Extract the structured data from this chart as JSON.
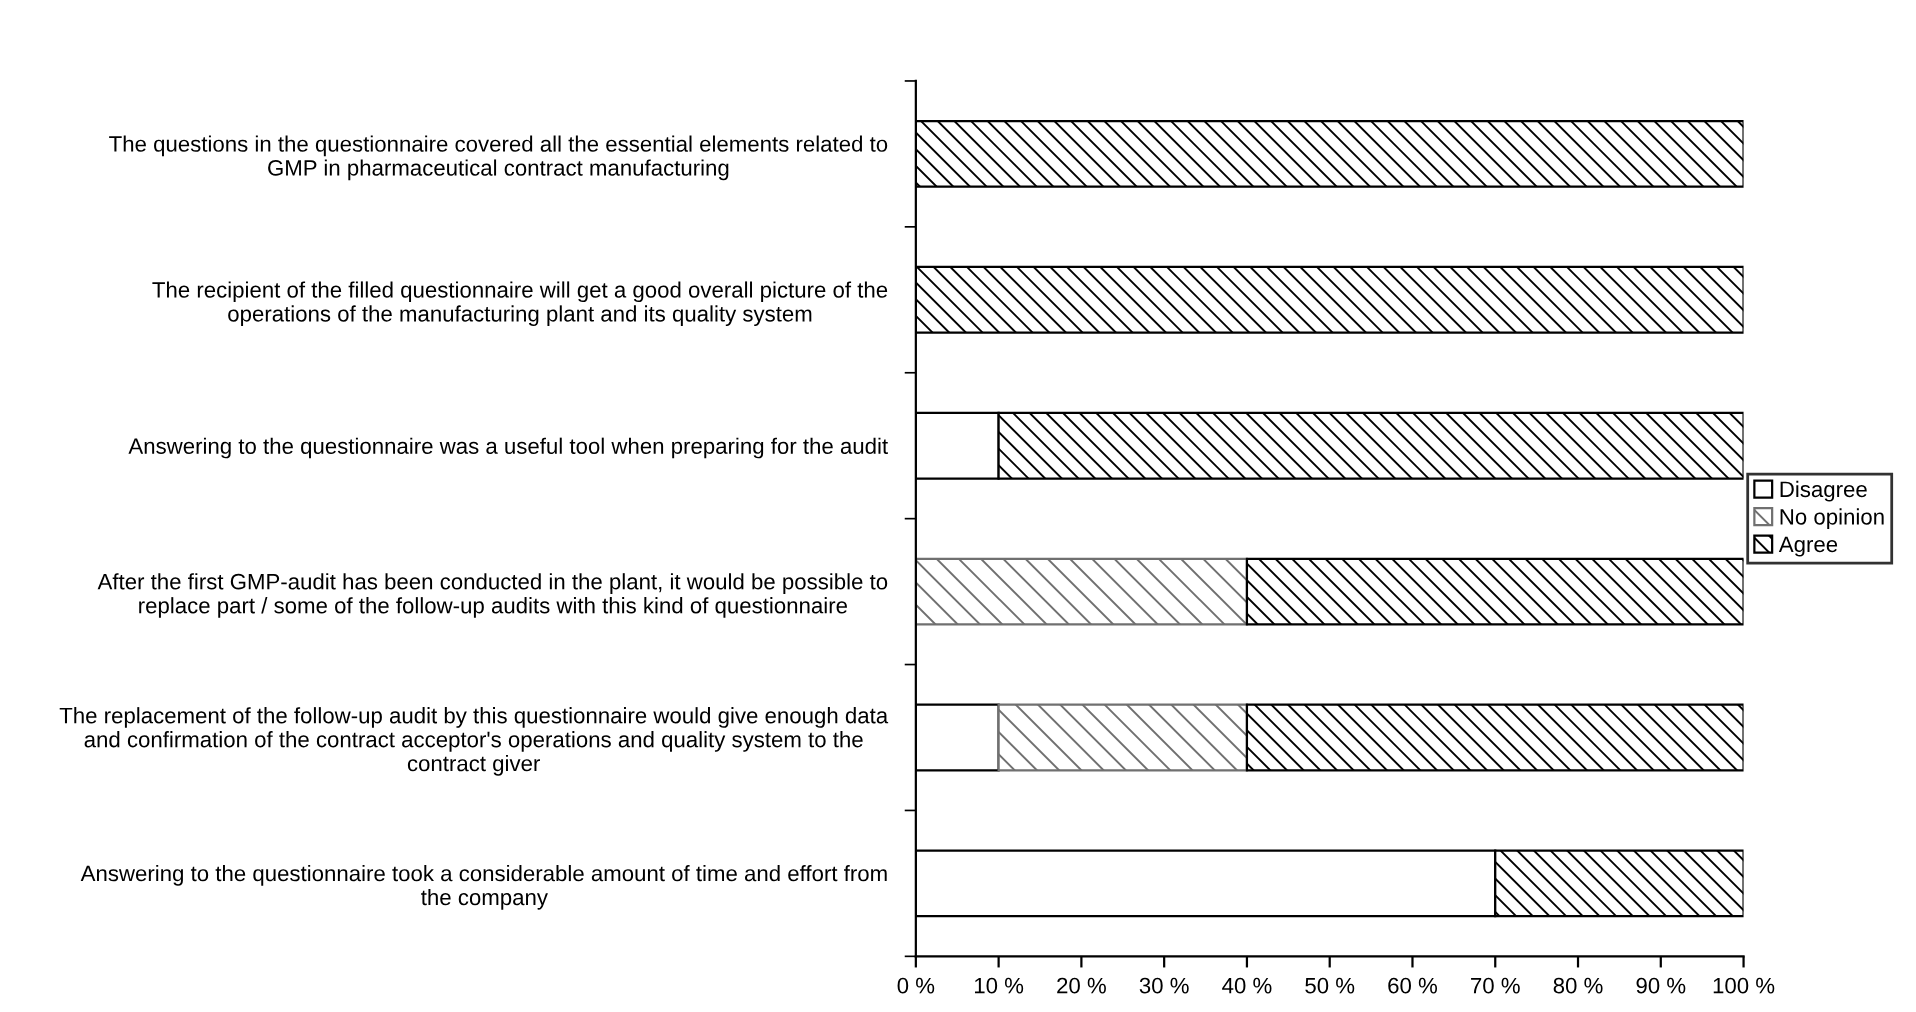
{
  "chart_data": {
    "type": "bar",
    "orientation": "horizontal",
    "stacked": true,
    "categories": [
      "The questions in the questionnaire covered all the essential elements related to\nGMP in pharmaceutical contract manufacturing",
      "The recipient of the filled questionnaire will get a good overall picture of the\noperations of the manufacturing plant and its quality system",
      "Answering to the questionnaire was a useful tool when preparing for the audit",
      "After the first GMP-audit has been conducted in the plant, it would be possible to\nreplace part / some of the follow-up audits with this kind of questionnaire",
      "The replacement of the follow-up audit by this questionnaire would give enough data\nand confirmation of the contract acceptor's operations and quality system to the\ncontract giver",
      "Answering to the questionnaire took a considerable amount of time and effort from\nthe company"
    ],
    "series": [
      {
        "name": "Disagree",
        "color": "#ffffff",
        "values": [
          null,
          null,
          10,
          null,
          10,
          70
        ]
      },
      {
        "name": "No opinion",
        "color": "#707070",
        "values": [
          null,
          null,
          null,
          40,
          30,
          null
        ]
      },
      {
        "name": "Agree",
        "color": "#000000",
        "values": [
          100,
          100,
          90,
          60,
          60,
          30
        ]
      }
    ],
    "xlim": [
      0,
      100
    ],
    "xticks": [
      {
        "value": 0,
        "label": "0 %"
      },
      {
        "value": 10,
        "label": "10 %"
      },
      {
        "value": 20,
        "label": "20 %"
      },
      {
        "value": 30,
        "label": "30 %"
      },
      {
        "value": 40,
        "label": "40 %"
      },
      {
        "value": 50,
        "label": "50 %"
      },
      {
        "value": 60,
        "label": "60 %"
      },
      {
        "value": 70,
        "label": "70 %"
      },
      {
        "value": 80,
        "label": "80 %"
      },
      {
        "value": 90,
        "label": "90 %"
      },
      {
        "value": 100,
        "label": "100 %"
      }
    ],
    "grid": false,
    "legend": "right"
  }
}
